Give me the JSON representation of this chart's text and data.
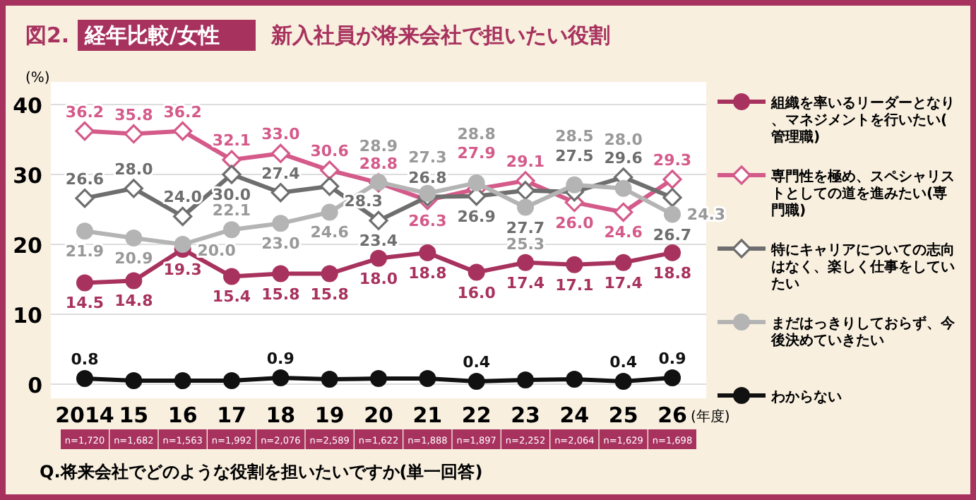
{
  "chart_data": {
    "type": "line",
    "title": "図2. 経年比較/女性",
    "subtitle": "新入社員が将来会社で担いたい役割",
    "ylabel": "(%)",
    "xlabel": "(年度)",
    "categories": [
      "2014",
      "15",
      "16",
      "17",
      "18",
      "19",
      "20",
      "21",
      "22",
      "23",
      "24",
      "25",
      "26"
    ],
    "ylim": [
      0,
      40
    ],
    "yticks": [
      0,
      10,
      20,
      30,
      40
    ],
    "grid": "y",
    "legend": "right",
    "series": [
      {
        "name": "組織を率いるリーダーとなり、マネジメントを行いたい(管理職)",
        "color": "#a8325e",
        "marker": "circle",
        "values": [
          14.5,
          14.8,
          19.3,
          15.4,
          15.8,
          15.8,
          18.0,
          18.8,
          16.0,
          17.4,
          17.1,
          17.4,
          18.8
        ],
        "value_labels": [
          "14.5",
          "14.8",
          "19.3",
          "15.4",
          "15.8",
          "15.8",
          "18.0",
          "18.8",
          "16.0",
          "17.4",
          "17.1",
          "17.4",
          "18.8"
        ]
      },
      {
        "name": "専門性を極め、スペシャリストとしての道を進みたい(専門職)",
        "color": "#d45a8a",
        "marker": "diamond",
        "values": [
          36.2,
          35.8,
          36.2,
          32.1,
          33.0,
          30.6,
          28.8,
          26.3,
          27.9,
          29.1,
          26.0,
          24.6,
          29.3
        ],
        "value_labels": [
          "36.2",
          "35.8",
          "36.2",
          "32.1",
          "33.0",
          "30.6",
          "28.8",
          "26.3",
          "27.9",
          "29.1",
          "26.0",
          "24.6",
          "29.3"
        ]
      },
      {
        "name": "特にキャリアについての志向はなく、楽しく仕事をしていたい",
        "color": "#6e6e6e",
        "marker": "diamond",
        "values": [
          26.6,
          28.0,
          24.0,
          30.0,
          27.4,
          28.3,
          23.4,
          26.8,
          26.9,
          27.7,
          27.5,
          29.6,
          26.7
        ],
        "value_labels": [
          "26.6",
          "28.0",
          "24.0",
          "30.0",
          "27.4",
          "28.3",
          "23.4",
          "26.8",
          "26.9",
          "27.7",
          "27.5",
          "29.6",
          "26.7"
        ]
      },
      {
        "name": "まだはっきりしておらず、今後決めていきたい",
        "color": "#b4b4b4",
        "marker": "circle",
        "values": [
          21.9,
          20.9,
          20.0,
          22.1,
          23.0,
          24.6,
          28.9,
          27.3,
          28.8,
          25.3,
          28.5,
          28.0,
          24.3
        ],
        "value_labels": [
          "21.9",
          "20.9",
          "20.0",
          "22.1",
          "23.0",
          "24.6",
          "28.9",
          "27.3",
          "28.8",
          "25.3",
          "28.5",
          "28.0",
          "24.3"
        ]
      },
      {
        "name": "わからない",
        "color": "#111111",
        "marker": "circle",
        "values": [
          0.8,
          0.5,
          0.5,
          0.5,
          0.9,
          0.7,
          0.8,
          0.8,
          0.4,
          0.6,
          0.7,
          0.4,
          0.9
        ],
        "value_labels": [
          "0.8",
          null,
          null,
          null,
          "0.9",
          null,
          null,
          null,
          "0.4",
          null,
          null,
          "0.4",
          "0.9"
        ]
      }
    ],
    "annotations": [
      "n=1,720",
      "n=1,682",
      "n=1,563",
      "n=1,992",
      "n=2,076",
      "n=2,589",
      "n=1,622",
      "n=1,888",
      "n=1,897",
      "n=2,252",
      "n=2,064",
      "n=1,629",
      "n=1,698",
      "Q.将来会社でどのような役割を担いたいですか(単一回答)"
    ]
  }
}
